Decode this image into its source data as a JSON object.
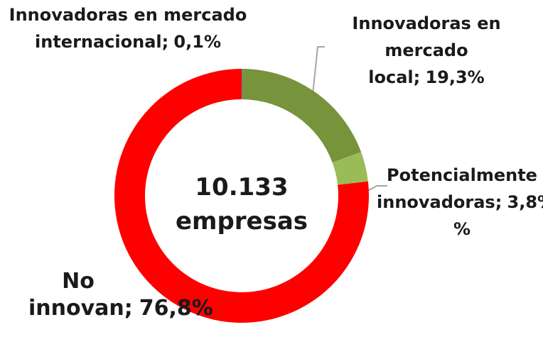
{
  "chart_data": {
    "type": "donut",
    "categories": [
      "Innovadoras en mercado internacional;",
      "Innovadoras en mercado local;",
      "Potencialmente innovadoras;",
      "No innovan;"
    ],
    "values": [
      0.1,
      19.3,
      3.8,
      76.8
    ],
    "value_labels": [
      "0,1%",
      "19,3%",
      "3,8% %",
      "76,8%"
    ],
    "colors": [
      "#4f81bd",
      "#77933c",
      "#9bbb59",
      "#ff0000"
    ],
    "center_label": [
      "10.133",
      "empresas"
    ]
  }
}
